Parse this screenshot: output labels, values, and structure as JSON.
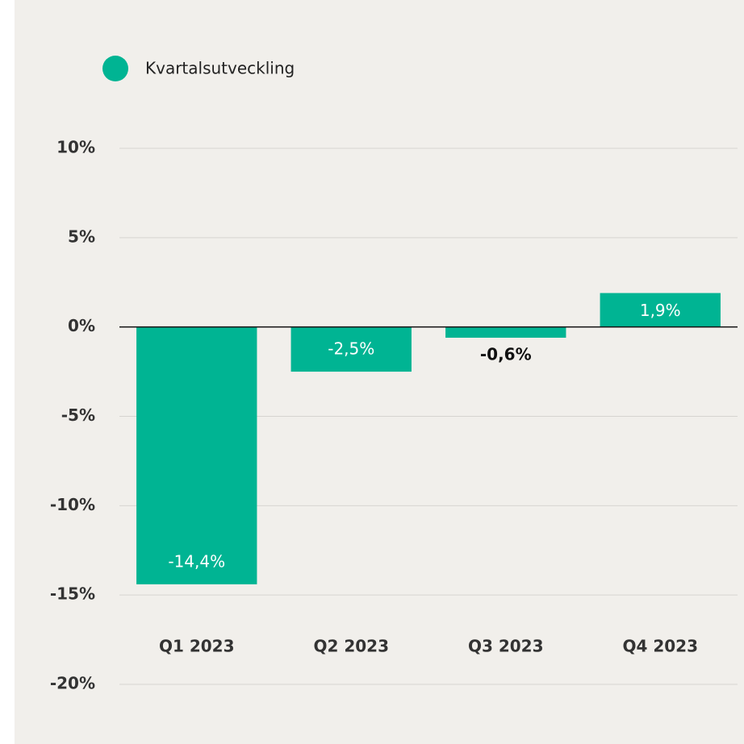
{
  "chart_data": {
    "type": "bar",
    "categories": [
      "Q1 2023",
      "Q2 2023",
      "Q3 2023",
      "Q4 2023"
    ],
    "series": [
      {
        "name": "Kvartalsutveckling",
        "color": "#00b493",
        "values": [
          -14.4,
          -2.5,
          -0.6,
          1.9
        ],
        "value_labels": [
          "-14,4%",
          "-2,5%",
          "-0,6%",
          "1,9%"
        ]
      }
    ],
    "ylim": [
      -20,
      10
    ],
    "yticks": [
      {
        "value": 10,
        "label": "10%"
      },
      {
        "value": 5,
        "label": "5%"
      },
      {
        "value": 0,
        "label": "0%"
      },
      {
        "value": -5,
        "label": "-5%"
      },
      {
        "value": -10,
        "label": "-10%"
      },
      {
        "value": -15,
        "label": "-15%"
      },
      {
        "value": -20,
        "label": "-20%"
      }
    ],
    "grid": true,
    "legend": "top-left"
  }
}
